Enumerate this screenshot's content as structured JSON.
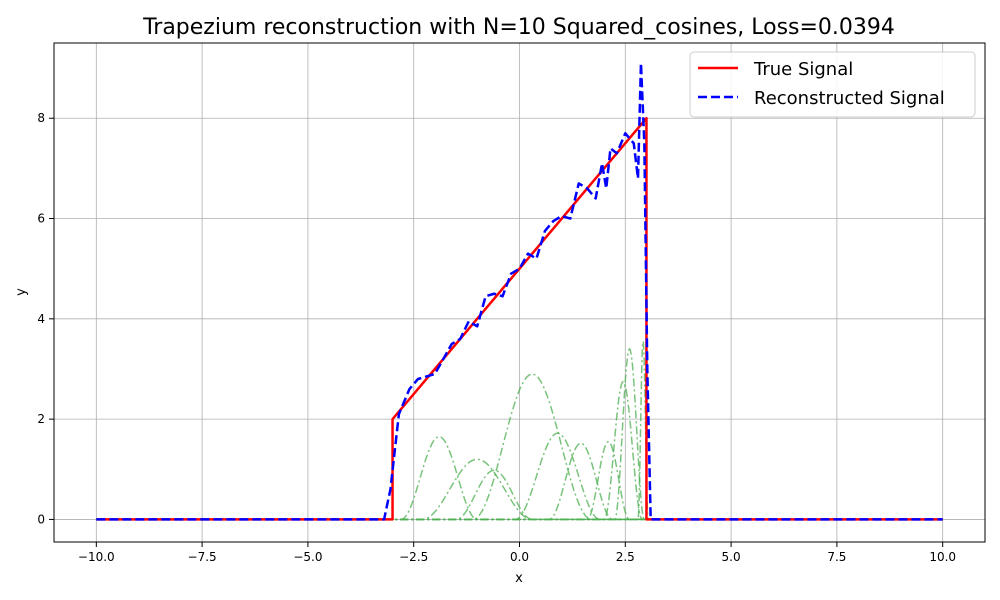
{
  "chart_data": {
    "type": "line",
    "title": "Trapezium reconstruction with N=10 Squared_cosines, Loss=0.0394",
    "xlabel": "x",
    "ylabel": "y",
    "xlim": [
      -11,
      11
    ],
    "ylim": [
      -0.45,
      9.5
    ],
    "xticks": [
      -10,
      -7.5,
      -5,
      -2.5,
      0,
      2.5,
      5,
      7.5,
      10
    ],
    "xtick_labels": [
      "−10.0",
      "−7.5",
      "−5.0",
      "−2.5",
      "0.0",
      "2.5",
      "5.0",
      "7.5",
      "10.0"
    ],
    "yticks": [
      0,
      2,
      4,
      6,
      8
    ],
    "ytick_labels": [
      "0",
      "2",
      "4",
      "6",
      "8"
    ],
    "grid": true,
    "legend_position": "top-right",
    "legend": [
      {
        "label": "True Signal",
        "color": "#ff0000",
        "style": "solid"
      },
      {
        "label": "Reconstructed Signal",
        "color": "#0000ff",
        "style": "dashed"
      }
    ],
    "series": [
      {
        "name": "True Signal",
        "color": "#ff0000",
        "style": "solid",
        "x": [
          -10,
          -3.0,
          -3.0,
          3.0,
          3.0,
          10
        ],
        "y": [
          0,
          0,
          2,
          8,
          0,
          0
        ]
      },
      {
        "name": "Reconstructed Signal",
        "color": "#0000ff",
        "style": "dashed",
        "x": [
          -10,
          -3.2,
          -3.05,
          -2.85,
          -2.6,
          -2.4,
          -2.2,
          -2.0,
          -1.8,
          -1.6,
          -1.4,
          -1.2,
          -1.0,
          -0.8,
          -0.6,
          -0.4,
          -0.2,
          0.0,
          0.2,
          0.4,
          0.6,
          0.8,
          1.0,
          1.2,
          1.4,
          1.6,
          1.8,
          1.95,
          2.05,
          2.15,
          2.3,
          2.5,
          2.7,
          2.8,
          2.87,
          2.95,
          3.02,
          3.1,
          3.2,
          10
        ],
        "y": [
          0,
          0,
          0.6,
          2.1,
          2.6,
          2.8,
          2.85,
          2.9,
          3.2,
          3.5,
          3.6,
          3.95,
          3.85,
          4.45,
          4.5,
          4.45,
          4.9,
          5.0,
          5.3,
          5.2,
          5.75,
          5.95,
          6.05,
          6.0,
          6.7,
          6.6,
          6.4,
          7.1,
          6.6,
          7.4,
          7.3,
          7.7,
          7.5,
          6.8,
          9.1,
          7.5,
          3.0,
          0.0,
          0,
          0
        ]
      }
    ],
    "components": {
      "color": "#4caf50",
      "style": "dashdot",
      "bumps": [
        {
          "center": -1.0,
          "half_width": 1.3,
          "height": 1.2
        },
        {
          "center": -1.9,
          "half_width": 0.9,
          "height": 1.65
        },
        {
          "center": -0.6,
          "half_width": 0.9,
          "height": 0.98
        },
        {
          "center": 0.3,
          "half_width": 1.4,
          "height": 2.9
        },
        {
          "center": 0.9,
          "half_width": 1.0,
          "height": 1.72
        },
        {
          "center": 1.45,
          "half_width": 0.75,
          "height": 1.52
        },
        {
          "center": 2.1,
          "half_width": 0.5,
          "height": 1.55
        },
        {
          "center": 2.45,
          "half_width": 0.45,
          "height": 2.75
        },
        {
          "center": 2.6,
          "half_width": 0.35,
          "height": 3.4
        },
        {
          "center": 2.92,
          "half_width": 0.12,
          "height": 3.55
        }
      ]
    }
  }
}
